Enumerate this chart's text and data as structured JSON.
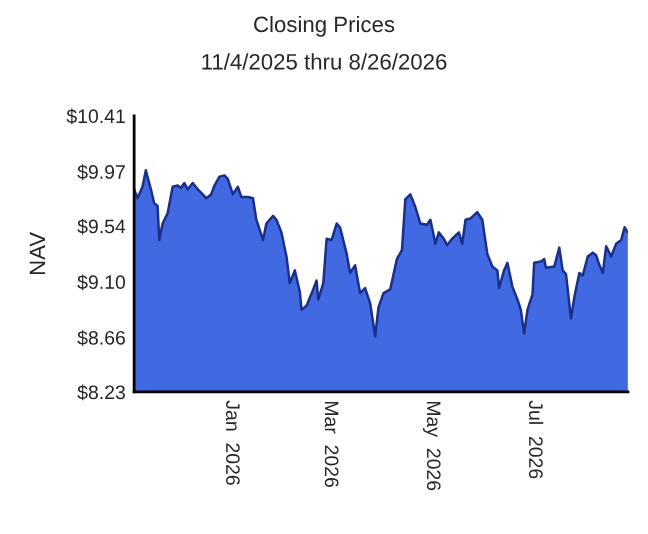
{
  "chart_data": {
    "type": "area",
    "title": "Closing Prices",
    "subtitle": "11/4/2025 thru 8/26/2026",
    "ylabel": "NAV",
    "x": [
      "2025-11-04",
      "2025-11-06",
      "2025-11-09",
      "2025-11-11",
      "2025-11-14",
      "2025-11-16",
      "2025-11-18",
      "2025-11-19",
      "2025-11-21",
      "2025-11-24",
      "2025-11-27",
      "2025-11-30",
      "2025-12-02",
      "2025-12-04",
      "2025-12-06",
      "2025-12-09",
      "2025-12-12",
      "2025-12-15",
      "2025-12-17",
      "2025-12-20",
      "2025-12-22",
      "2025-12-25",
      "2025-12-28",
      "2025-12-30",
      "2026-01-02",
      "2026-01-05",
      "2026-01-07",
      "2026-01-11",
      "2026-01-14",
      "2026-01-16",
      "2026-01-20",
      "2026-01-22",
      "2026-01-26",
      "2026-01-28",
      "2026-01-31",
      "2026-02-03",
      "2026-02-05",
      "2026-02-08",
      "2026-02-11",
      "2026-02-12",
      "2026-02-15",
      "2026-02-19",
      "2026-02-21",
      "2026-02-22",
      "2026-02-25",
      "2026-02-27",
      "2026-03-02",
      "2026-03-05",
      "2026-03-07",
      "2026-03-11",
      "2026-03-13",
      "2026-03-16",
      "2026-03-19",
      "2026-03-22",
      "2026-03-25",
      "2026-03-28",
      "2026-03-30",
      "2026-04-02",
      "2026-04-06",
      "2026-04-10",
      "2026-04-13",
      "2026-04-15",
      "2026-04-18",
      "2026-04-21",
      "2026-04-24",
      "2026-04-28",
      "2026-04-30",
      "2026-05-03",
      "2026-05-05",
      "2026-05-08",
      "2026-05-10",
      "2026-05-13",
      "2026-05-17",
      "2026-05-19",
      "2026-05-21",
      "2026-05-24",
      "2026-05-28",
      "2026-05-31",
      "2026-06-03",
      "2026-06-06",
      "2026-06-09",
      "2026-06-10",
      "2026-06-13",
      "2026-06-15",
      "2026-06-18",
      "2026-06-21",
      "2026-06-23",
      "2026-06-25",
      "2026-06-27",
      "2026-06-30",
      "2026-07-01",
      "2026-07-05",
      "2026-07-07",
      "2026-07-08",
      "2026-07-13",
      "2026-07-16",
      "2026-07-18",
      "2026-07-20",
      "2026-07-23",
      "2026-07-25",
      "2026-07-28",
      "2026-07-30",
      "2026-08-02",
      "2026-08-05",
      "2026-08-07",
      "2026-08-09",
      "2026-08-11",
      "2026-08-13",
      "2026-08-16",
      "2026-08-19",
      "2026-08-22",
      "2026-08-24",
      "2026-08-26"
    ],
    "series": [
      {
        "color": "#4169e1",
        "values": [
          9.83,
          9.76,
          9.85,
          9.98,
          9.83,
          9.72,
          9.7,
          9.43,
          9.56,
          9.64,
          9.85,
          9.86,
          9.84,
          9.88,
          9.83,
          9.88,
          9.83,
          9.79,
          9.76,
          9.79,
          9.86,
          9.93,
          9.94,
          9.91,
          9.79,
          9.85,
          9.77,
          9.77,
          9.76,
          9.59,
          9.43,
          9.56,
          9.62,
          9.59,
          9.49,
          9.3,
          9.09,
          9.19,
          9.02,
          8.88,
          8.91,
          9.04,
          9.11,
          8.96,
          9.09,
          9.44,
          9.43,
          9.56,
          9.53,
          9.32,
          9.17,
          9.23,
          9.01,
          9.05,
          8.93,
          8.67,
          8.9,
          9.01,
          9.04,
          9.28,
          9.35,
          9.75,
          9.79,
          9.69,
          9.56,
          9.55,
          9.59,
          9.4,
          9.49,
          9.44,
          9.39,
          9.44,
          9.49,
          9.4,
          9.59,
          9.6,
          9.65,
          9.59,
          9.32,
          9.22,
          9.19,
          9.05,
          9.19,
          9.25,
          9.06,
          8.96,
          8.88,
          8.69,
          8.88,
          9.0,
          9.25,
          9.26,
          9.28,
          9.21,
          9.22,
          9.37,
          9.19,
          9.16,
          8.81,
          8.98,
          9.17,
          9.15,
          9.3,
          9.33,
          9.31,
          9.23,
          9.17,
          9.38,
          9.3,
          9.4,
          9.43,
          9.53,
          9.49
        ]
      }
    ],
    "xlim": [
      "2025-11-04",
      "2026-08-26"
    ],
    "xticks": [
      {
        "value": "2026-01-01",
        "label": "Jan  2026"
      },
      {
        "value": "2026-03-01",
        "label": "Mar  2026"
      },
      {
        "value": "2026-05-01",
        "label": "May  2026"
      },
      {
        "value": "2026-07-01",
        "label": "Jul  2026"
      }
    ],
    "ylim": [
      8.23,
      10.41
    ],
    "yticks": [
      {
        "value": 8.23,
        "label": "$8.23"
      },
      {
        "value": 8.66,
        "label": "$8.66"
      },
      {
        "value": 9.1,
        "label": "$9.10"
      },
      {
        "value": 9.54,
        "label": "$9.54"
      },
      {
        "value": 9.97,
        "label": "$9.97"
      },
      {
        "value": 10.41,
        "label": "$10.41"
      }
    ],
    "grid": false,
    "legend": false
  }
}
